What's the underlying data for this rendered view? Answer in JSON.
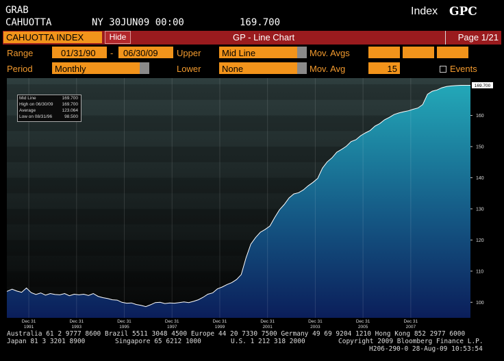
{
  "header": {
    "line1_left": "GRAB",
    "line2_left": "CAHUOTTA",
    "exchange_date": "NY 30JUN09 00:00",
    "last_value": "169.700",
    "index_label": "Index",
    "ticker": "GPC"
  },
  "bar": {
    "security_name": "CAHUOTTA INDEX",
    "hide_label": "Hide",
    "title": "GP - Line Chart",
    "page": "Page 1/21"
  },
  "controls": {
    "range_label": "Range",
    "range_start": "01/31/90",
    "range_dash": "-",
    "range_end": "06/30/09",
    "upper_label": "Upper",
    "upper_value": "Mid Line",
    "mov_avgs_label": "Mov. Avgs",
    "period_label": "Period",
    "period_value": "Monthly",
    "lower_label": "Lower",
    "lower_value": "None",
    "mov_avg_label": "Mov. Avg",
    "mov_avg_value": "15",
    "events_label": "Events"
  },
  "legend_box": {
    "rows": [
      {
        "label": "Mid Line",
        "value": "169.700"
      },
      {
        "label": "High on  06/30/09",
        "value": "169.700"
      },
      {
        "label": "Average",
        "value": "123.064"
      },
      {
        "label": "Low on  08/31/96",
        "value": "98.500"
      }
    ]
  },
  "footer": {
    "line1": "Australia 61 2 9777 8600 Brazil 5511 3048 4500 Europe 44 20 7330 7500 Germany 49 69 9204 1210 Hong Kong 852 2977 6000",
    "line2_left": "Japan 81 3 3201 8900",
    "line2_mid1": "Singapore 65 6212 1000",
    "line2_mid2": "U.S. 1 212 318 2000",
    "line2_right": "Copyright 2009 Bloomberg Finance L.P.",
    "line3": "H206-290-0 28-Aug-09 10:53:54"
  },
  "colors": {
    "accent_orange": "#f2941b",
    "bar_red": "#9a1b1e",
    "area_top": "#23a8b8",
    "area_bottom": "#0b1e5a",
    "line": "#ffffff"
  },
  "chart_data": {
    "type": "area",
    "title": "",
    "ylim": [
      95,
      172
    ],
    "yticks": [
      100,
      110,
      120,
      130,
      140,
      150,
      160
    ],
    "ytick_labels": [
      "100",
      "110",
      "120",
      "130",
      "140",
      "150",
      "160"
    ],
    "last_value_label": "169.700",
    "xlim": [
      1990.08,
      2009.5
    ],
    "xticks": [
      1991.0,
      1993.0,
      1995.0,
      1997.0,
      1999.0,
      2001.0,
      2003.0,
      2005.0,
      2007.0
    ],
    "xtick_labels": [
      [
        "Dec 31",
        "1991"
      ],
      [
        "Dec 31",
        "1993"
      ],
      [
        "Dec 31",
        "1995"
      ],
      [
        "Dec 31",
        "1997"
      ],
      [
        "Dec 31",
        "1999"
      ],
      [
        "Dec 31",
        "2001"
      ],
      [
        "Dec 31",
        "2003"
      ],
      [
        "Dec 31",
        "2005"
      ],
      [
        "Dec 31",
        "2007"
      ]
    ],
    "x": [
      1990.08,
      1990.3,
      1990.5,
      1990.7,
      1990.9,
      1991.1,
      1991.3,
      1991.5,
      1991.7,
      1991.9,
      1992.1,
      1992.3,
      1992.5,
      1992.7,
      1992.9,
      1993.1,
      1993.3,
      1993.5,
      1993.7,
      1993.9,
      1994.1,
      1994.3,
      1994.5,
      1994.7,
      1994.9,
      1995.1,
      1995.3,
      1995.5,
      1995.7,
      1995.9,
      1996.1,
      1996.3,
      1996.5,
      1996.7,
      1996.9,
      1997.1,
      1997.3,
      1997.5,
      1997.7,
      1997.9,
      1998.1,
      1998.3,
      1998.5,
      1998.7,
      1998.9,
      1999.1,
      1999.3,
      1999.5,
      1999.7,
      1999.9,
      2000.1,
      2000.3,
      2000.5,
      2000.7,
      2000.9,
      2001.1,
      2001.3,
      2001.5,
      2001.7,
      2001.9,
      2002.1,
      2002.3,
      2002.5,
      2002.7,
      2002.9,
      2003.1,
      2003.3,
      2003.5,
      2003.7,
      2003.9,
      2004.1,
      2004.3,
      2004.5,
      2004.7,
      2004.9,
      2005.1,
      2005.3,
      2005.5,
      2005.7,
      2005.9,
      2006.1,
      2006.3,
      2006.5,
      2006.7,
      2006.9,
      2007.1,
      2007.3,
      2007.5,
      2007.7,
      2007.9,
      2008.1,
      2008.3,
      2008.5,
      2008.7,
      2008.9,
      2009.1,
      2009.3,
      2009.5
    ],
    "values": [
      103.5,
      104.2,
      103.6,
      103.2,
      104.6,
      103.1,
      102.5,
      103.0,
      102.3,
      102.8,
      102.5,
      102.4,
      102.8,
      102.1,
      102.6,
      102.4,
      102.6,
      102.2,
      102.8,
      101.9,
      101.5,
      101.2,
      100.8,
      100.7,
      100.0,
      99.7,
      99.8,
      99.3,
      99.0,
      98.6,
      99.2,
      99.9,
      100.0,
      99.6,
      99.8,
      99.7,
      99.9,
      100.1,
      99.9,
      100.3,
      100.8,
      101.6,
      102.6,
      103.0,
      104.3,
      104.9,
      105.7,
      106.3,
      107.3,
      108.9,
      114.3,
      118.7,
      120.8,
      122.5,
      123.4,
      124.5,
      127.2,
      129.7,
      131.4,
      133.5,
      134.8,
      135.2,
      136.1,
      137.4,
      138.5,
      139.8,
      143.1,
      145.1,
      146.4,
      148.2,
      149.1,
      150.1,
      151.6,
      152.2,
      153.5,
      154.4,
      155.2,
      156.6,
      157.4,
      158.6,
      159.4,
      160.3,
      160.8,
      161.2,
      161.5,
      162.0,
      162.4,
      163.5,
      166.8,
      167.8,
      168.2,
      168.9,
      169.3,
      169.5,
      169.6,
      169.7,
      169.7,
      169.7
    ]
  }
}
